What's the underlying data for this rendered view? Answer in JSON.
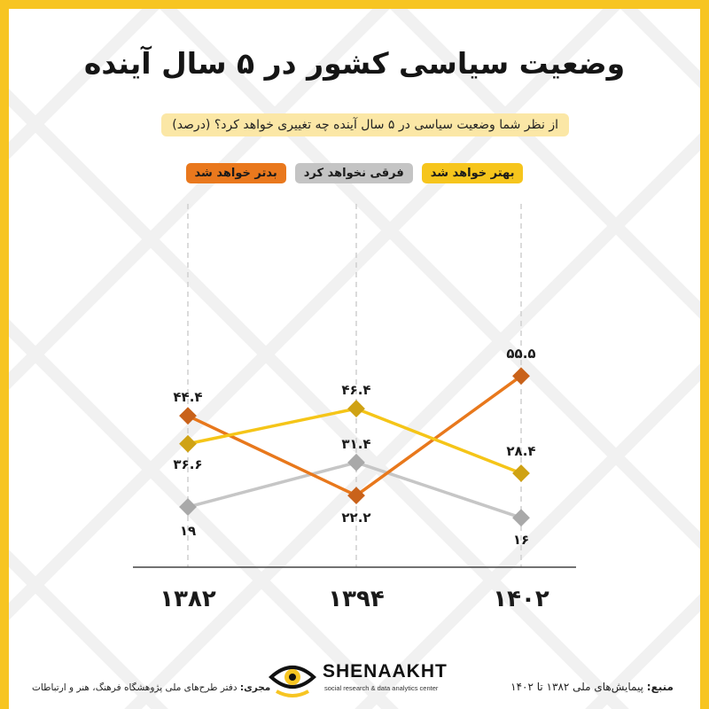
{
  "title": "وضعیت سیاسی کشور در ۵ سال آینده",
  "question": "از نظر شما وضعیت سیاسی در ۵ سال آینده چه تغییری خواهد کرد؟ (درصد)",
  "legend": {
    "worse": "بدتر خواهد شد",
    "same": "فرقی نخواهد کرد",
    "better": "بهتر خواهد شد"
  },
  "colors": {
    "worse": "#e8781c",
    "worse_marker": "#c9621a",
    "same": "#c6c6c6",
    "same_marker": "#a9a9a9",
    "better": "#f5c518",
    "better_marker": "#cfa214",
    "frame": "#f7c522"
  },
  "chart_data": {
    "type": "line",
    "categories": [
      "۱۳۸۲",
      "۱۳۹۴",
      "۱۴۰۲"
    ],
    "series": [
      {
        "name": "بدتر خواهد شد",
        "key": "worse",
        "values": [
          44.4,
          22.2,
          55.5
        ],
        "labels": [
          "۴۴.۴",
          "۲۲.۲",
          "۵۵.۵"
        ]
      },
      {
        "name": "فرقی نخواهد کرد",
        "key": "same",
        "values": [
          19,
          31.4,
          16
        ],
        "labels": [
          "۱۹",
          "۳۱.۴",
          "۱۶"
        ]
      },
      {
        "name": "بهتر خواهد شد",
        "key": "better",
        "values": [
          36.6,
          46.4,
          28.4
        ],
        "labels": [
          "۳۶.۶",
          "۴۶.۴",
          "۲۸.۴"
        ]
      }
    ],
    "grid": "vertical dashed lines at categories"
  },
  "footer": {
    "source_label": "منبع:",
    "source_text": "پیمایش‌های ملی ۱۳۸۲ تا ۱۴۰۲",
    "executor_label": "مجری:",
    "executor_text": "دفتر طرح‌های ملی پژوهشگاه فرهنگ، هنر و ارتباطات"
  },
  "logo": {
    "name": "SHENAAKHT",
    "tagline": "social research & data analytics center",
    "icon": "eye-icon"
  }
}
